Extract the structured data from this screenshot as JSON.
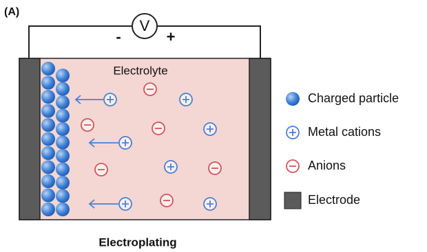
{
  "label": "(A)",
  "voltmeter": {
    "symbol": "V",
    "negative": "-",
    "positive": "+"
  },
  "cell": {
    "electrolyte": "Electrolyte"
  },
  "legend": {
    "items": [
      "Charged particle",
      "Metal cations",
      "Anions",
      "Electrode"
    ]
  },
  "caption": "Electroplating"
}
